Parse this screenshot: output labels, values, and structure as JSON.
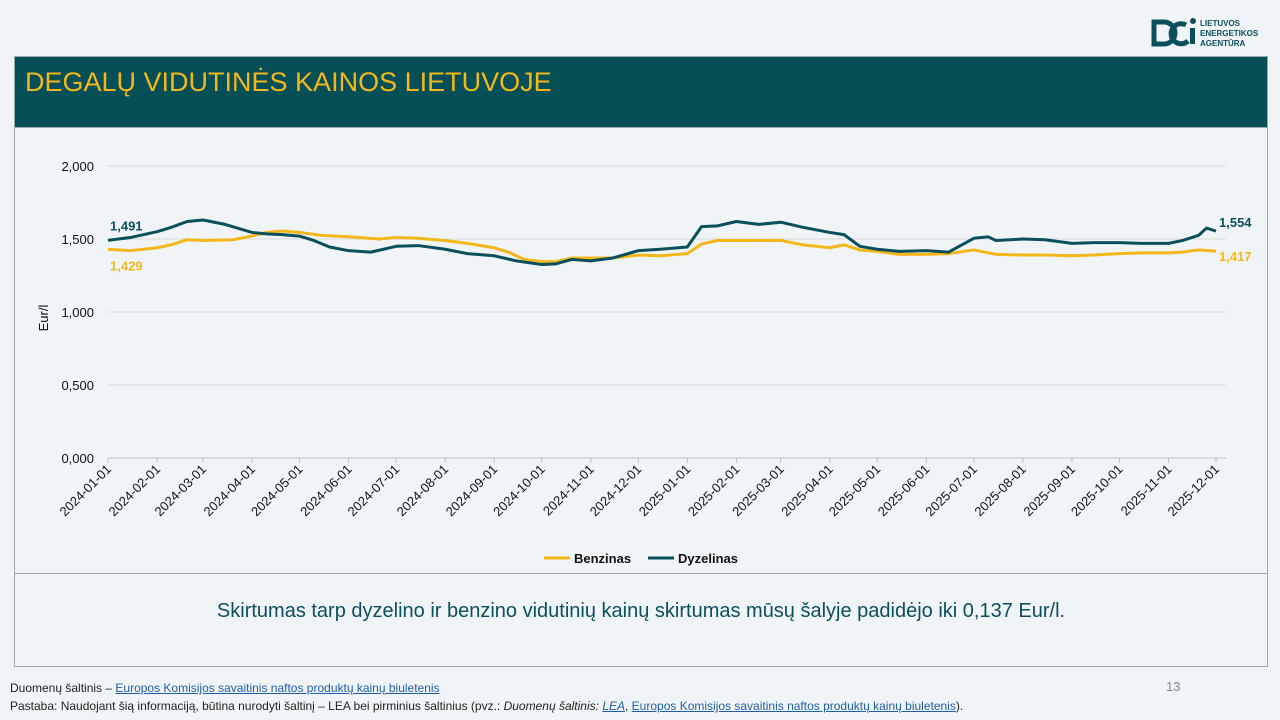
{
  "logo": {
    "icon": "lea-logo-icon",
    "lines": [
      "LIETUVOS",
      "ENERGETIKOS",
      "AGENTŪRA"
    ],
    "color": "#0b4f5c"
  },
  "title": "DEGALŲ VIDUTINĖS KAINOS LIETUVOJE",
  "summary": "Skirtumas tarp dyzelino ir benzino vidutinių kainų skirtumas mūsų šalyje padidėjo iki 0,137 Eur/l.",
  "page_number": "13",
  "footer": {
    "source_prefix": "Duomenų šaltinis – ",
    "source_link": "Europos Komisijos savaitinis naftos produktų kainų biuletenis",
    "note_prefix": "Pastaba: Naudojant šią informaciją, būtina nurodyti šaltinį – LEA bei pirminius šaltinius (pvz.: ",
    "note_source_label": "Duomenų šaltinis: ",
    "note_lea_link": "LEA",
    "note_separator": ", ",
    "note_link": "Europos Komisijos savaitinis naftos produktų kainų biuletenis",
    "note_suffix": ")."
  },
  "chart_data": {
    "type": "line",
    "title": "",
    "ylabel": "Eur/l",
    "xlabel": "",
    "ylim": [
      0,
      2
    ],
    "y_ticks": [
      "0,000",
      "0,500",
      "1,000",
      "1,500",
      "2,000"
    ],
    "x_ticks": [
      "2024-01-01",
      "2024-02-01",
      "2024-03-01",
      "2024-04-01",
      "2024-05-01",
      "2024-06-01",
      "2024-07-01",
      "2024-08-01",
      "2024-09-01",
      "2024-10-01",
      "2024-11-01",
      "2024-12-01",
      "2025-01-01",
      "2025-02-01",
      "2025-03-01",
      "2025-04-01",
      "2025-05-01",
      "2025-06-01",
      "2025-07-01",
      "2025-08-01",
      "2025-09-01",
      "2025-10-01",
      "2025-11-01",
      "2025-12-01"
    ],
    "grid": true,
    "legend": "bottom",
    "series": [
      {
        "name": "Benzinas",
        "color": "#f4b71a",
        "start_label": "1,429",
        "end_label": "1,417",
        "points": [
          [
            "2024-01-01",
            1.429
          ],
          [
            "2024-01-15",
            1.42
          ],
          [
            "2024-02-01",
            1.44
          ],
          [
            "2024-02-10",
            1.46
          ],
          [
            "2024-02-20",
            1.495
          ],
          [
            "2024-03-01",
            1.49
          ],
          [
            "2024-03-20",
            1.495
          ],
          [
            "2024-04-01",
            1.52
          ],
          [
            "2024-04-10",
            1.545
          ],
          [
            "2024-04-20",
            1.555
          ],
          [
            "2024-05-01",
            1.545
          ],
          [
            "2024-05-15",
            1.525
          ],
          [
            "2024-06-01",
            1.515
          ],
          [
            "2024-06-20",
            1.5
          ],
          [
            "2024-07-01",
            1.51
          ],
          [
            "2024-07-15",
            1.505
          ],
          [
            "2024-08-01",
            1.49
          ],
          [
            "2024-08-15",
            1.47
          ],
          [
            "2024-09-01",
            1.44
          ],
          [
            "2024-09-10",
            1.41
          ],
          [
            "2024-09-20",
            1.36
          ],
          [
            "2024-10-01",
            1.345
          ],
          [
            "2024-10-10",
            1.345
          ],
          [
            "2024-10-20",
            1.37
          ],
          [
            "2024-11-01",
            1.37
          ],
          [
            "2024-11-15",
            1.37
          ],
          [
            "2024-12-01",
            1.39
          ],
          [
            "2024-12-15",
            1.385
          ],
          [
            "2025-01-01",
            1.4
          ],
          [
            "2025-01-10",
            1.465
          ],
          [
            "2025-01-20",
            1.49
          ],
          [
            "2025-02-01",
            1.49
          ],
          [
            "2025-02-15",
            1.49
          ],
          [
            "2025-03-01",
            1.49
          ],
          [
            "2025-03-15",
            1.46
          ],
          [
            "2025-04-01",
            1.44
          ],
          [
            "2025-04-10",
            1.46
          ],
          [
            "2025-04-20",
            1.425
          ],
          [
            "2025-05-01",
            1.415
          ],
          [
            "2025-05-15",
            1.395
          ],
          [
            "2025-06-01",
            1.395
          ],
          [
            "2025-06-15",
            1.4
          ],
          [
            "2025-07-01",
            1.425
          ],
          [
            "2025-07-15",
            1.395
          ],
          [
            "2025-08-01",
            1.39
          ],
          [
            "2025-08-15",
            1.39
          ],
          [
            "2025-09-01",
            1.385
          ],
          [
            "2025-09-15",
            1.39
          ],
          [
            "2025-10-01",
            1.4
          ],
          [
            "2025-10-15",
            1.405
          ],
          [
            "2025-11-01",
            1.405
          ],
          [
            "2025-11-10",
            1.41
          ],
          [
            "2025-11-20",
            1.425
          ],
          [
            "2025-12-01",
            1.417
          ]
        ]
      },
      {
        "name": "Dyzelinas",
        "color": "#0b4f5c",
        "start_label": "1,491",
        "end_label": "1,554",
        "points": [
          [
            "2024-01-01",
            1.491
          ],
          [
            "2024-01-15",
            1.51
          ],
          [
            "2024-02-01",
            1.55
          ],
          [
            "2024-02-10",
            1.58
          ],
          [
            "2024-02-20",
            1.62
          ],
          [
            "2024-03-01",
            1.63
          ],
          [
            "2024-03-15",
            1.6
          ],
          [
            "2024-04-01",
            1.545
          ],
          [
            "2024-04-10",
            1.535
          ],
          [
            "2024-04-20",
            1.53
          ],
          [
            "2024-05-01",
            1.52
          ],
          [
            "2024-05-10",
            1.49
          ],
          [
            "2024-05-20",
            1.445
          ],
          [
            "2024-06-01",
            1.42
          ],
          [
            "2024-06-15",
            1.41
          ],
          [
            "2024-07-01",
            1.45
          ],
          [
            "2024-07-15",
            1.455
          ],
          [
            "2024-08-01",
            1.43
          ],
          [
            "2024-08-15",
            1.4
          ],
          [
            "2024-09-01",
            1.385
          ],
          [
            "2024-09-15",
            1.35
          ],
          [
            "2024-10-01",
            1.325
          ],
          [
            "2024-10-10",
            1.33
          ],
          [
            "2024-10-20",
            1.36
          ],
          [
            "2024-11-01",
            1.35
          ],
          [
            "2024-11-15",
            1.37
          ],
          [
            "2024-12-01",
            1.42
          ],
          [
            "2024-12-15",
            1.43
          ],
          [
            "2025-01-01",
            1.445
          ],
          [
            "2025-01-10",
            1.585
          ],
          [
            "2025-01-20",
            1.59
          ],
          [
            "2025-02-01",
            1.62
          ],
          [
            "2025-02-15",
            1.6
          ],
          [
            "2025-03-01",
            1.615
          ],
          [
            "2025-03-15",
            1.58
          ],
          [
            "2025-04-01",
            1.545
          ],
          [
            "2025-04-10",
            1.53
          ],
          [
            "2025-04-20",
            1.45
          ],
          [
            "2025-05-01",
            1.43
          ],
          [
            "2025-05-15",
            1.415
          ],
          [
            "2025-06-01",
            1.42
          ],
          [
            "2025-06-15",
            1.41
          ],
          [
            "2025-07-01",
            1.505
          ],
          [
            "2025-07-10",
            1.515
          ],
          [
            "2025-07-15",
            1.49
          ],
          [
            "2025-08-01",
            1.5
          ],
          [
            "2025-08-15",
            1.495
          ],
          [
            "2025-09-01",
            1.47
          ],
          [
            "2025-09-15",
            1.475
          ],
          [
            "2025-10-01",
            1.475
          ],
          [
            "2025-10-15",
            1.47
          ],
          [
            "2025-11-01",
            1.47
          ],
          [
            "2025-11-10",
            1.49
          ],
          [
            "2025-11-20",
            1.525
          ],
          [
            "2025-11-25",
            1.575
          ],
          [
            "2025-12-01",
            1.554
          ]
        ]
      }
    ]
  }
}
